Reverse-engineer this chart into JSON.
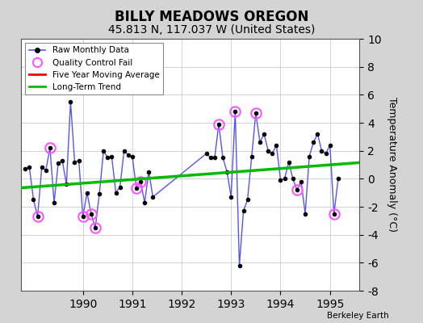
{
  "title": "BILLY MEADOWS OREGON",
  "subtitle": "45.813 N, 117.037 W (United States)",
  "ylabel": "Temperature Anomaly (°C)",
  "watermark": "Berkeley Earth",
  "fig_bg": "#d4d4d4",
  "plot_bg": "#ffffff",
  "ylim": [
    -8,
    10
  ],
  "yticks": [
    -8,
    -6,
    -4,
    -2,
    0,
    2,
    4,
    6,
    8,
    10
  ],
  "xlim": [
    1988.75,
    1995.6
  ],
  "xticks": [
    1990,
    1991,
    1992,
    1993,
    1994,
    1995
  ],
  "monthly_data": [
    [
      1988.833,
      0.7,
      false
    ],
    [
      1988.917,
      0.8,
      false
    ],
    [
      1989.0,
      -1.5,
      false
    ],
    [
      1989.083,
      -2.7,
      true
    ],
    [
      1989.167,
      0.8,
      false
    ],
    [
      1989.25,
      0.6,
      false
    ],
    [
      1989.333,
      2.2,
      true
    ],
    [
      1989.417,
      -1.7,
      false
    ],
    [
      1989.5,
      1.1,
      false
    ],
    [
      1989.583,
      1.3,
      false
    ],
    [
      1989.667,
      -0.4,
      false
    ],
    [
      1989.75,
      5.5,
      false
    ],
    [
      1989.833,
      1.2,
      false
    ],
    [
      1989.917,
      1.3,
      false
    ],
    [
      1990.0,
      -2.7,
      true
    ],
    [
      1990.083,
      -1.0,
      false
    ],
    [
      1990.167,
      -2.5,
      true
    ],
    [
      1990.25,
      -3.5,
      true
    ],
    [
      1990.333,
      -1.1,
      false
    ],
    [
      1990.417,
      2.0,
      false
    ],
    [
      1990.5,
      1.5,
      false
    ],
    [
      1990.583,
      1.6,
      false
    ],
    [
      1990.667,
      -1.0,
      false
    ],
    [
      1990.75,
      -0.6,
      false
    ],
    [
      1990.833,
      2.0,
      false
    ],
    [
      1990.917,
      1.7,
      false
    ],
    [
      1991.0,
      1.6,
      false
    ],
    [
      1991.083,
      -0.7,
      true
    ],
    [
      1991.167,
      -0.2,
      true
    ],
    [
      1991.25,
      -1.7,
      false
    ],
    [
      1991.333,
      0.5,
      false
    ],
    [
      1991.417,
      -1.3,
      false
    ],
    [
      1992.5,
      1.8,
      false
    ],
    [
      1992.583,
      1.5,
      false
    ],
    [
      1992.667,
      1.5,
      false
    ],
    [
      1992.75,
      3.9,
      true
    ],
    [
      1992.833,
      1.5,
      false
    ],
    [
      1992.917,
      0.5,
      false
    ],
    [
      1993.0,
      -1.3,
      false
    ],
    [
      1993.083,
      4.8,
      true
    ],
    [
      1993.167,
      -6.2,
      false
    ],
    [
      1993.25,
      -2.3,
      false
    ],
    [
      1993.333,
      -1.5,
      false
    ],
    [
      1993.417,
      1.6,
      false
    ],
    [
      1993.5,
      4.7,
      true
    ],
    [
      1993.583,
      2.6,
      false
    ],
    [
      1993.667,
      3.2,
      false
    ],
    [
      1993.75,
      2.0,
      false
    ],
    [
      1993.833,
      1.8,
      false
    ],
    [
      1993.917,
      2.4,
      false
    ],
    [
      1994.0,
      -0.1,
      false
    ],
    [
      1994.083,
      0.0,
      false
    ],
    [
      1994.167,
      1.2,
      false
    ],
    [
      1994.25,
      0.0,
      false
    ],
    [
      1994.333,
      -0.8,
      true
    ],
    [
      1994.417,
      -0.2,
      false
    ],
    [
      1994.5,
      -2.5,
      false
    ],
    [
      1994.583,
      1.6,
      false
    ],
    [
      1994.667,
      2.6,
      false
    ],
    [
      1994.75,
      3.2,
      false
    ],
    [
      1994.833,
      2.0,
      false
    ],
    [
      1994.917,
      1.8,
      false
    ],
    [
      1995.0,
      2.4,
      false
    ],
    [
      1995.083,
      -2.5,
      true
    ],
    [
      1995.167,
      0.0,
      false
    ]
  ],
  "trend_x": [
    1988.75,
    1995.6
  ],
  "trend_y": [
    -0.65,
    1.15
  ],
  "line_color": "#5555ee",
  "dot_color": "#000000",
  "qc_color": "#ff55ff",
  "trend_color": "#00bb00",
  "grid_color": "#cccccc",
  "title_fontsize": 12,
  "subtitle_fontsize": 10,
  "tick_fontsize": 10,
  "ylabel_fontsize": 9
}
